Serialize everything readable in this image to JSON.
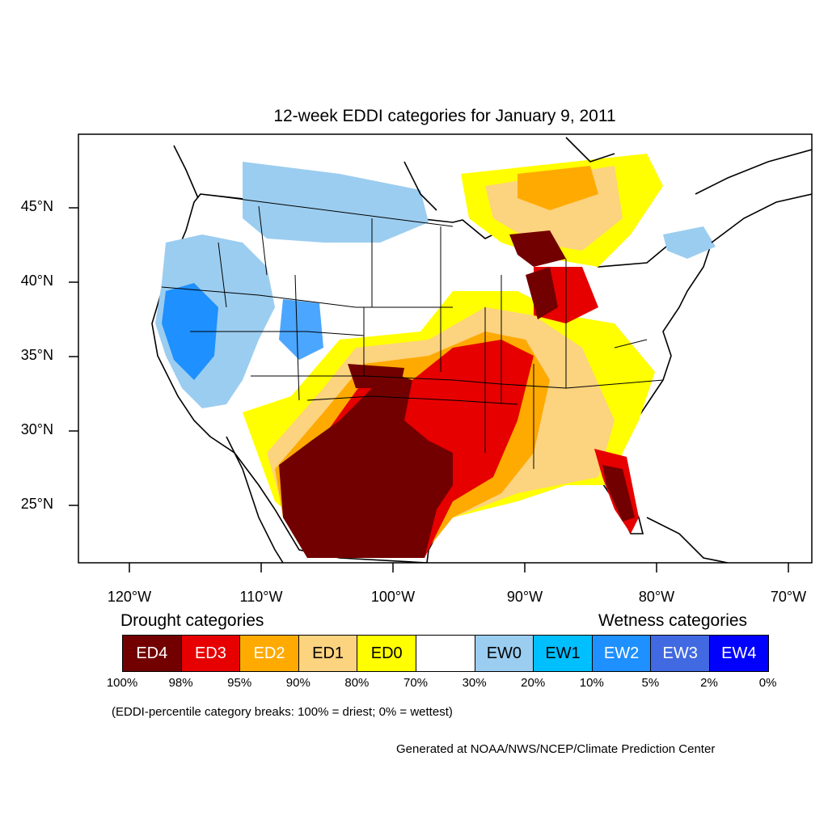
{
  "map": {
    "title": "12-week EDDI categories for January 9, 2011",
    "latitude_labels": [
      "45°N",
      "40°N",
      "35°N",
      "30°N",
      "25°N"
    ],
    "longitude_labels": [
      "120°W",
      "110°W",
      "100°W",
      "90°W",
      "80°W",
      "70°W"
    ]
  },
  "legend": {
    "drought_heading": "Drought categories",
    "wetness_heading": "Wetness categories",
    "categories": [
      {
        "label": "ED4",
        "color": "#730000"
      },
      {
        "label": "ED3",
        "color": "#e60000"
      },
      {
        "label": "ED2",
        "color": "#ffaa00"
      },
      {
        "label": "ED1",
        "color": "#fcd37f"
      },
      {
        "label": "ED0",
        "color": "#ffff00"
      },
      {
        "label": "",
        "color": "#ffffff"
      },
      {
        "label": "EW0",
        "color": "#9bcdf0"
      },
      {
        "label": "EW1",
        "color": "#00bfff"
      },
      {
        "label": "EW2",
        "color": "#1e90ff"
      },
      {
        "label": "EW3",
        "color": "#4169e1"
      },
      {
        "label": "EW4",
        "color": "#0000ff"
      }
    ],
    "breaks": [
      "100%",
      "98%",
      "95%",
      "90%",
      "80%",
      "70%",
      "30%",
      "20%",
      "10%",
      "5%",
      "2%",
      "0%"
    ],
    "note": "(EDDI-percentile category breaks: 100% = driest; 0% = wettest)"
  },
  "footer": {
    "credit": "Generated at NOAA/NWS/NCEP/Climate Prediction Center"
  }
}
